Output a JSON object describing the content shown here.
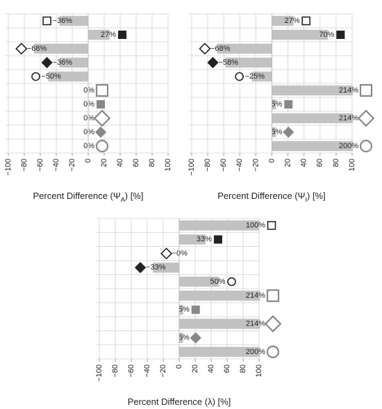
{
  "chart_data": [
    {
      "type": "bar",
      "orientation": "horizontal",
      "values": [
        -36,
        27,
        -68,
        -36,
        -50,
        0,
        0,
        0,
        0,
        0
      ],
      "value_labels": [
        "−36%",
        "27%",
        "−68%",
        "−36%",
        "−50%",
        "0%",
        "0%",
        "0%",
        "0%",
        "0%"
      ],
      "xlabel": [
        "Percent Difference (Ψ",
        "A",
        ") [%]"
      ],
      "xlim": [
        -100,
        100
      ],
      "xticks": [
        {
          "value": -100,
          "label": "−100"
        },
        {
          "value": -80,
          "label": "−80"
        },
        {
          "value": -60,
          "label": "−60"
        },
        {
          "value": -40,
          "label": "−40"
        },
        {
          "value": -20,
          "label": "−20"
        },
        0,
        20,
        40,
        60,
        80,
        100
      ],
      "color": "#c2c2c2",
      "grid": true,
      "markers": [
        {
          "shape": "square",
          "filled": false,
          "color": "#222",
          "size": "small"
        },
        {
          "shape": "square",
          "filled": true,
          "color": "#222",
          "size": "small"
        },
        {
          "shape": "diamond",
          "filled": false,
          "color": "#222",
          "size": "small"
        },
        {
          "shape": "diamond",
          "filled": true,
          "color": "#222",
          "size": "small"
        },
        {
          "shape": "circle",
          "filled": false,
          "color": "#222",
          "size": "small"
        },
        {
          "shape": "square",
          "filled": false,
          "color": "#888",
          "size": "large"
        },
        {
          "shape": "square",
          "filled": true,
          "color": "#888",
          "size": "small"
        },
        {
          "shape": "diamond",
          "filled": false,
          "color": "#888",
          "size": "large"
        },
        {
          "shape": "diamond",
          "filled": true,
          "color": "#888",
          "size": "small"
        },
        {
          "shape": "circle",
          "filled": false,
          "color": "#888",
          "size": "large"
        }
      ]
    },
    {
      "type": "bar",
      "orientation": "horizontal",
      "values": [
        27,
        70,
        -68,
        -58,
        -25,
        214,
        5,
        214,
        5,
        200
      ],
      "value_labels": [
        "27%",
        "70%",
        "−68%",
        "−58%",
        "−25%",
        "214%",
        "5%",
        "214%",
        "5%",
        "200%"
      ],
      "xlabel": [
        "Percent Difference (Ψ",
        "I",
        ") [%]"
      ],
      "xlim": [
        -100,
        100
      ],
      "xticks": [
        {
          "value": -100,
          "label": "−100"
        },
        {
          "value": -80,
          "label": "−80"
        },
        {
          "value": -60,
          "label": "−60"
        },
        {
          "value": -40,
          "label": "−40"
        },
        {
          "value": -20,
          "label": "−20"
        },
        0,
        20,
        40,
        60,
        80,
        100
      ],
      "color": "#c2c2c2",
      "grid": true,
      "markers": [
        {
          "shape": "square",
          "filled": false,
          "color": "#222",
          "size": "small"
        },
        {
          "shape": "square",
          "filled": true,
          "color": "#222",
          "size": "small"
        },
        {
          "shape": "diamond",
          "filled": false,
          "color": "#222",
          "size": "small"
        },
        {
          "shape": "diamond",
          "filled": true,
          "color": "#222",
          "size": "small"
        },
        {
          "shape": "circle",
          "filled": false,
          "color": "#222",
          "size": "small"
        },
        {
          "shape": "square",
          "filled": false,
          "color": "#888",
          "size": "large"
        },
        {
          "shape": "square",
          "filled": true,
          "color": "#888",
          "size": "small"
        },
        {
          "shape": "diamond",
          "filled": false,
          "color": "#888",
          "size": "large"
        },
        {
          "shape": "diamond",
          "filled": true,
          "color": "#888",
          "size": "small"
        },
        {
          "shape": "circle",
          "filled": false,
          "color": "#888",
          "size": "large"
        }
      ]
    },
    {
      "type": "bar",
      "orientation": "horizontal",
      "values": [
        100,
        33,
        -0.4,
        -33,
        50,
        214,
        5,
        214,
        5,
        200
      ],
      "value_labels": [
        "100%",
        "33%",
        "−0%",
        "−33%",
        "50%",
        "214%",
        "5%",
        "214%",
        "5%",
        "200%"
      ],
      "xlabel": [
        "Percent Difference (λ) [%]"
      ],
      "xlim": [
        -100,
        100
      ],
      "xticks": [
        {
          "value": -100,
          "label": "−100"
        },
        {
          "value": -80,
          "label": "−80"
        },
        {
          "value": -60,
          "label": "−60"
        },
        {
          "value": -40,
          "label": "−40"
        },
        {
          "value": -20,
          "label": "−20"
        },
        0,
        20,
        40,
        60,
        80,
        100
      ],
      "color": "#c2c2c2",
      "grid": true,
      "markers": [
        {
          "shape": "square",
          "filled": false,
          "color": "#222",
          "size": "small"
        },
        {
          "shape": "square",
          "filled": true,
          "color": "#222",
          "size": "small"
        },
        {
          "shape": "diamond",
          "filled": false,
          "color": "#222",
          "size": "small"
        },
        {
          "shape": "diamond",
          "filled": true,
          "color": "#222",
          "size": "small"
        },
        {
          "shape": "circle",
          "filled": false,
          "color": "#222",
          "size": "small"
        },
        {
          "shape": "square",
          "filled": false,
          "color": "#888",
          "size": "large"
        },
        {
          "shape": "square",
          "filled": true,
          "color": "#888",
          "size": "small"
        },
        {
          "shape": "diamond",
          "filled": false,
          "color": "#888",
          "size": "large"
        },
        {
          "shape": "diamond",
          "filled": true,
          "color": "#888",
          "size": "small"
        },
        {
          "shape": "circle",
          "filled": false,
          "color": "#888",
          "size": "large"
        }
      ]
    }
  ]
}
